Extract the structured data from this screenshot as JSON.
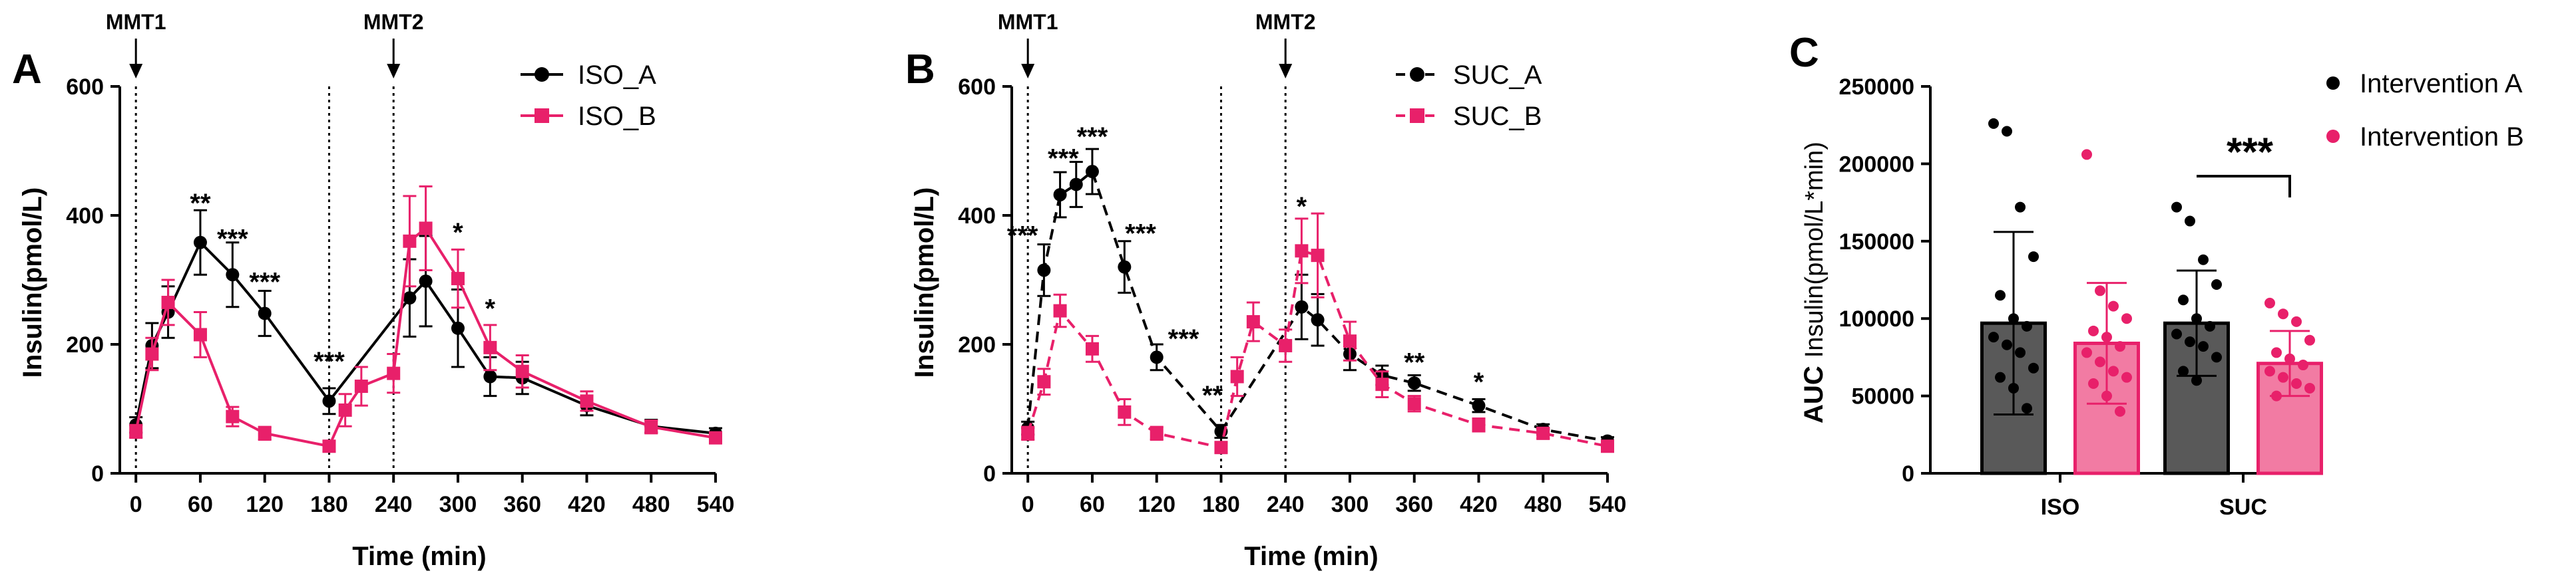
{
  "colors": {
    "black": "#000000",
    "pink": "#e8206a",
    "bar_gray": "#595959",
    "bar_pink": "#f27ba3"
  },
  "chart_data": [
    {
      "panel": "A",
      "type": "line",
      "ylabel": "Insulin(pmol/L)",
      "xlabel": "Time (min)",
      "ylim": [
        0,
        600
      ],
      "yticks": [
        0,
        200,
        400,
        600
      ],
      "xlim": [
        -15,
        540
      ],
      "xticks": [
        0,
        60,
        120,
        180,
        240,
        300,
        360,
        420,
        480,
        540
      ],
      "meals": [
        {
          "label": "MMT1",
          "x": 0
        },
        {
          "label": "MMT2",
          "x": 240
        }
      ],
      "divider_x": 180,
      "series": [
        {
          "name": "ISO_A",
          "color": "#000000",
          "marker": "circle",
          "dashed": false,
          "x": [
            0,
            15,
            30,
            60,
            90,
            120,
            180,
            255,
            270,
            300,
            330,
            360,
            420,
            480,
            540
          ],
          "y": [
            75,
            198,
            250,
            358,
            308,
            248,
            112,
            272,
            298,
            225,
            150,
            148,
            105,
            73,
            62
          ],
          "err": [
            12,
            35,
            40,
            50,
            50,
            35,
            20,
            60,
            70,
            60,
            30,
            25,
            15,
            10,
            8
          ]
        },
        {
          "name": "ISO_B",
          "color": "#e8206a",
          "marker": "square",
          "dashed": false,
          "x": [
            0,
            15,
            30,
            60,
            90,
            120,
            180,
            195,
            210,
            240,
            255,
            270,
            300,
            330,
            360,
            420,
            480,
            540
          ],
          "y": [
            65,
            185,
            265,
            215,
            88,
            62,
            42,
            98,
            135,
            155,
            360,
            380,
            302,
            195,
            158,
            112,
            72,
            55
          ],
          "err": [
            10,
            25,
            35,
            35,
            15,
            10,
            8,
            25,
            30,
            30,
            70,
            65,
            45,
            35,
            25,
            15,
            10,
            8
          ]
        }
      ],
      "annotations": [
        {
          "text": "**",
          "x": 60,
          "y": 405
        },
        {
          "text": "***",
          "x": 90,
          "y": 350
        },
        {
          "text": "***",
          "x": 120,
          "y": 283
        },
        {
          "text": "***",
          "x": 180,
          "y": 160
        },
        {
          "text": "*",
          "x": 300,
          "y": 360
        },
        {
          "text": "*",
          "x": 330,
          "y": 242
        }
      ]
    },
    {
      "panel": "B",
      "type": "line",
      "ylabel": "Insulin(pmol/L)",
      "xlabel": "Time (min)",
      "ylim": [
        0,
        600
      ],
      "yticks": [
        0,
        200,
        400,
        600
      ],
      "xlim": [
        -15,
        540
      ],
      "xticks": [
        0,
        60,
        120,
        180,
        240,
        300,
        360,
        420,
        480,
        540
      ],
      "meals": [
        {
          "label": "MMT1",
          "x": 0
        },
        {
          "label": "MMT2",
          "x": 240
        }
      ],
      "divider_x": 180,
      "series": [
        {
          "name": "SUC_A",
          "color": "#000000",
          "marker": "circle",
          "dashed": true,
          "x": [
            0,
            15,
            30,
            45,
            60,
            90,
            120,
            180,
            255,
            270,
            300,
            330,
            360,
            420,
            480,
            540
          ],
          "y": [
            70,
            315,
            432,
            448,
            468,
            320,
            180,
            65,
            258,
            238,
            185,
            152,
            140,
            105,
            68,
            50
          ],
          "err": [
            10,
            40,
            35,
            35,
            35,
            40,
            20,
            10,
            50,
            40,
            25,
            15,
            12,
            10,
            8,
            6
          ]
        },
        {
          "name": "SUC_B",
          "color": "#e8206a",
          "marker": "square",
          "dashed": true,
          "x": [
            0,
            15,
            30,
            60,
            90,
            120,
            180,
            195,
            210,
            240,
            255,
            270,
            300,
            330,
            360,
            420,
            480,
            540
          ],
          "y": [
            62,
            142,
            252,
            193,
            95,
            62,
            40,
            150,
            235,
            198,
            345,
            338,
            205,
            138,
            108,
            75,
            62,
            42
          ],
          "err": [
            10,
            20,
            25,
            20,
            20,
            10,
            8,
            30,
            30,
            25,
            50,
            65,
            30,
            20,
            12,
            10,
            8,
            6
          ]
        }
      ],
      "annotations": [
        {
          "text": "***",
          "x": -5,
          "y": 355
        },
        {
          "text": "***",
          "x": 33,
          "y": 475
        },
        {
          "text": "***",
          "x": 60,
          "y": 508
        },
        {
          "text": "***",
          "x": 105,
          "y": 358
        },
        {
          "text": "***",
          "x": 145,
          "y": 195
        },
        {
          "text": "**",
          "x": 172,
          "y": 107
        },
        {
          "text": "*",
          "x": 255,
          "y": 400
        },
        {
          "text": "**",
          "x": 360,
          "y": 158
        },
        {
          "text": "*",
          "x": 420,
          "y": 128
        }
      ]
    },
    {
      "panel": "C",
      "type": "bar",
      "ylabel_bold": "AUC",
      "ylabel": "Insulin(pmol/L*min)",
      "ylim": [
        0,
        250000
      ],
      "yticks": [
        0,
        50000,
        100000,
        150000,
        200000,
        250000
      ],
      "categories": [
        "ISO",
        "SUC"
      ],
      "series": [
        {
          "name": "Intervention A",
          "color": "#595959",
          "dot_color": "#000000",
          "values": [
            97000,
            97000
          ],
          "err": [
            59000,
            34000
          ],
          "points": [
            [
              226000,
              221000,
              172000,
              140000,
              115000,
              100000,
              95000,
              88000,
              83000,
              78000,
              68000,
              62000,
              55000,
              42000
            ],
            [
              172000,
              163000,
              138000,
              122000,
              112000,
              100000,
              95000,
              90000,
              85000,
              82000,
              75000,
              66000,
              60000
            ]
          ]
        },
        {
          "name": "Intervention B",
          "color": "#f27ba3",
          "dot_color": "#e8206a",
          "values": [
            84000,
            71000
          ],
          "err": [
            39000,
            21000
          ],
          "points": [
            [
              206000,
              118000,
              108000,
              100000,
              92000,
              88000,
              82000,
              78000,
              72000,
              66000,
              62000,
              58000,
              50000,
              40000
            ],
            [
              110000,
              103000,
              98000,
              86000,
              78000,
              74000,
              70000,
              66000,
              62000,
              58000,
              55000,
              50000
            ]
          ]
        }
      ],
      "significance": {
        "text": "***",
        "category": "SUC"
      }
    }
  ]
}
